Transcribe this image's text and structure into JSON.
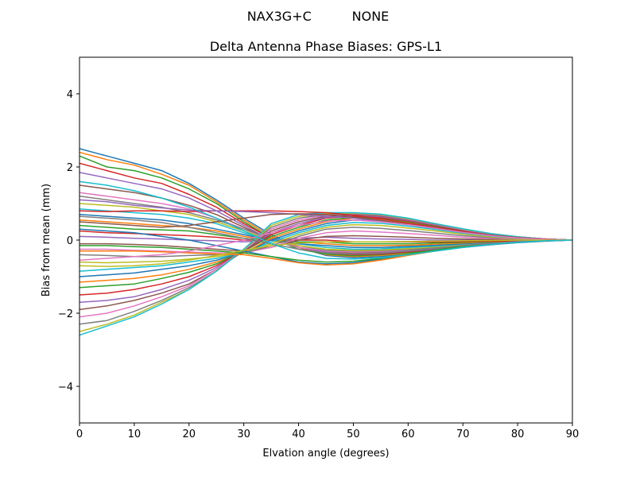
{
  "chart_data": {
    "type": "line",
    "suptitle": "NAX3G+C          NONE",
    "title": "Delta Antenna Phase Biases: GPS-L1",
    "xlabel": "Elvation angle (degrees)",
    "ylabel": "Bias from mean (mm)",
    "xlim": [
      0,
      90
    ],
    "ylim": [
      -5,
      5
    ],
    "x_ticks": [
      0,
      10,
      20,
      30,
      40,
      50,
      60,
      70,
      80,
      90
    ],
    "y_ticks": [
      -4,
      -2,
      0,
      2,
      4
    ],
    "y_tick_labels": [
      "−4",
      "−2",
      "0",
      "2",
      "4"
    ],
    "grid": false,
    "legend": "none",
    "x": [
      0,
      5,
      10,
      15,
      20,
      25,
      30,
      35,
      40,
      45,
      50,
      55,
      60,
      65,
      70,
      75,
      80,
      85,
      90
    ],
    "colors": [
      "#1f77b4",
      "#ff7f0e",
      "#2ca02c",
      "#d62728",
      "#9467bd",
      "#8c564b",
      "#e377c2",
      "#7f7f7f",
      "#bcbd22",
      "#17becf"
    ],
    "series": [
      {
        "values": [
          2.5,
          2.3,
          2.1,
          1.9,
          1.55,
          1.1,
          0.6,
          0.15,
          -0.2,
          -0.42,
          -0.48,
          -0.45,
          -0.38,
          -0.3,
          -0.2,
          -0.13,
          -0.07,
          -0.03,
          0
        ]
      },
      {
        "values": [
          2.4,
          2.2,
          2.05,
          1.8,
          1.5,
          1.05,
          0.55,
          0.1,
          -0.2,
          -0.4,
          -0.45,
          -0.42,
          -0.36,
          -0.28,
          -0.19,
          -0.12,
          -0.06,
          -0.02,
          0
        ]
      },
      {
        "values": [
          2.3,
          2.0,
          1.9,
          1.7,
          1.4,
          1.0,
          0.5,
          0.05,
          -0.25,
          -0.38,
          -0.43,
          -0.4,
          -0.34,
          -0.27,
          -0.18,
          -0.11,
          -0.06,
          -0.02,
          0
        ]
      },
      {
        "values": [
          2.1,
          1.9,
          1.7,
          1.55,
          1.25,
          0.9,
          0.45,
          0.05,
          -0.2,
          -0.35,
          -0.4,
          -0.38,
          -0.32,
          -0.25,
          -0.17,
          -0.1,
          -0.05,
          -0.02,
          0
        ]
      },
      {
        "values": [
          1.85,
          1.7,
          1.55,
          1.4,
          1.15,
          0.8,
          0.4,
          0.0,
          -0.2,
          -0.33,
          -0.38,
          -0.36,
          -0.3,
          -0.24,
          -0.16,
          -0.1,
          -0.05,
          -0.02,
          0
        ]
      },
      {
        "values": [
          1.5,
          1.4,
          1.3,
          1.15,
          0.95,
          0.7,
          0.35,
          0.0,
          -0.2,
          -0.3,
          -0.35,
          -0.33,
          -0.28,
          -0.22,
          -0.15,
          -0.09,
          -0.05,
          -0.02,
          0
        ]
      },
      {
        "values": [
          1.3,
          1.2,
          1.1,
          1.0,
          0.85,
          0.6,
          0.3,
          0.0,
          -0.2,
          -0.3,
          -0.33,
          -0.31,
          -0.27,
          -0.21,
          -0.14,
          -0.09,
          -0.04,
          -0.02,
          0
        ]
      },
      {
        "values": [
          1.2,
          1.1,
          1.0,
          0.9,
          0.75,
          0.55,
          0.3,
          0.05,
          -0.15,
          -0.28,
          -0.3,
          -0.29,
          -0.25,
          -0.2,
          -0.13,
          -0.08,
          -0.04,
          -0.01,
          0
        ]
      },
      {
        "values": [
          1.0,
          0.95,
          0.9,
          0.8,
          0.7,
          0.5,
          0.25,
          0.0,
          -0.15,
          -0.25,
          -0.28,
          -0.27,
          -0.23,
          -0.18,
          -0.12,
          -0.07,
          -0.04,
          -0.01,
          0
        ]
      },
      {
        "values": [
          0.85,
          0.8,
          0.75,
          0.7,
          0.6,
          0.45,
          0.2,
          0.0,
          -0.1,
          -0.2,
          -0.25,
          -0.24,
          -0.2,
          -0.16,
          -0.11,
          -0.07,
          -0.03,
          -0.01,
          0
        ]
      },
      {
        "values": [
          0.7,
          0.65,
          0.6,
          0.55,
          0.45,
          0.3,
          0.15,
          0.0,
          -0.1,
          -0.15,
          -0.2,
          -0.2,
          -0.17,
          -0.14,
          -0.1,
          -0.06,
          -0.03,
          -0.01,
          0
        ]
      },
      {
        "values": [
          0.55,
          0.5,
          0.45,
          0.4,
          0.35,
          0.25,
          0.1,
          0.0,
          -0.05,
          -0.1,
          -0.15,
          -0.15,
          -0.14,
          -0.11,
          -0.08,
          -0.05,
          -0.03,
          -0.01,
          0
        ]
      },
      {
        "values": [
          0.4,
          0.35,
          0.3,
          0.28,
          0.25,
          0.15,
          0.05,
          0.0,
          -0.05,
          -0.05,
          -0.1,
          -0.1,
          -0.1,
          -0.08,
          -0.06,
          -0.04,
          -0.02,
          -0.01,
          0
        ]
      },
      {
        "values": [
          0.25,
          0.2,
          0.18,
          0.15,
          0.12,
          0.08,
          0.0,
          0.0,
          0.0,
          0.0,
          -0.05,
          -0.05,
          -0.05,
          -0.05,
          -0.04,
          -0.03,
          -0.02,
          -0.01,
          0
        ]
      },
      {
        "values": [
          0.1,
          0.08,
          0.05,
          0.03,
          0.0,
          -0.02,
          -0.05,
          0.0,
          0.05,
          0.08,
          0.05,
          0.03,
          0.02,
          0.0,
          0.0,
          0.0,
          0.0,
          0.0,
          0
        ]
      },
      {
        "values": [
          -0.1,
          -0.1,
          -0.12,
          -0.15,
          -0.2,
          -0.25,
          -0.3,
          -0.2,
          0.0,
          0.1,
          0.12,
          0.1,
          0.08,
          0.05,
          0.03,
          0.02,
          0.01,
          0.0,
          0
        ]
      },
      {
        "values": [
          -0.25,
          -0.25,
          -0.28,
          -0.3,
          -0.33,
          -0.35,
          -0.35,
          -0.2,
          0.05,
          0.2,
          0.25,
          0.22,
          0.18,
          0.13,
          0.08,
          0.05,
          0.03,
          0.01,
          0
        ]
      },
      {
        "values": [
          -0.4,
          -0.42,
          -0.45,
          -0.45,
          -0.42,
          -0.4,
          -0.35,
          -0.15,
          0.1,
          0.3,
          0.35,
          0.32,
          0.26,
          0.19,
          0.12,
          0.07,
          0.04,
          0.01,
          0
        ]
      },
      {
        "values": [
          -0.6,
          -0.62,
          -0.6,
          -0.58,
          -0.52,
          -0.45,
          -0.35,
          -0.1,
          0.15,
          0.35,
          0.42,
          0.4,
          0.33,
          0.25,
          0.16,
          0.09,
          0.05,
          0.02,
          0
        ]
      },
      {
        "values": [
          -0.85,
          -0.8,
          -0.75,
          -0.7,
          -0.6,
          -0.5,
          -0.35,
          -0.05,
          0.2,
          0.4,
          0.48,
          0.46,
          0.38,
          0.29,
          0.19,
          0.11,
          0.06,
          0.02,
          0
        ]
      },
      {
        "values": [
          -1.0,
          -0.95,
          -0.9,
          -0.8,
          -0.7,
          -0.55,
          -0.35,
          0.0,
          0.25,
          0.45,
          0.55,
          0.52,
          0.43,
          0.33,
          0.22,
          0.13,
          0.07,
          0.02,
          0
        ]
      },
      {
        "values": [
          -1.15,
          -1.1,
          -1.05,
          -0.95,
          -0.8,
          -0.6,
          -0.35,
          0.05,
          0.3,
          0.5,
          0.6,
          0.57,
          0.47,
          0.36,
          0.24,
          0.14,
          0.07,
          0.03,
          0
        ]
      },
      {
        "values": [
          -1.3,
          -1.25,
          -1.2,
          -1.05,
          -0.88,
          -0.65,
          -0.3,
          0.1,
          0.35,
          0.55,
          0.62,
          0.6,
          0.5,
          0.38,
          0.26,
          0.15,
          0.08,
          0.03,
          0
        ]
      },
      {
        "values": [
          -1.5,
          -1.45,
          -1.35,
          -1.2,
          -1.0,
          -0.7,
          -0.3,
          0.15,
          0.4,
          0.6,
          0.65,
          0.62,
          0.52,
          0.4,
          0.27,
          0.16,
          0.08,
          0.03,
          0
        ]
      },
      {
        "values": [
          -1.7,
          -1.65,
          -1.55,
          -1.35,
          -1.1,
          -0.75,
          -0.3,
          0.2,
          0.45,
          0.62,
          0.68,
          0.64,
          0.54,
          0.41,
          0.28,
          0.16,
          0.08,
          0.03,
          0
        ]
      },
      {
        "values": [
          -1.9,
          -1.8,
          -1.65,
          -1.45,
          -1.2,
          -0.8,
          -0.3,
          0.25,
          0.5,
          0.65,
          0.7,
          0.66,
          0.56,
          0.42,
          0.29,
          0.17,
          0.09,
          0.03,
          0
        ]
      },
      {
        "values": [
          -2.1,
          -2.0,
          -1.8,
          -1.55,
          -1.25,
          -0.8,
          -0.25,
          0.3,
          0.55,
          0.68,
          0.72,
          0.68,
          0.57,
          0.43,
          0.29,
          0.17,
          0.09,
          0.03,
          0
        ]
      },
      {
        "values": [
          -2.3,
          -2.2,
          -1.95,
          -1.65,
          -1.3,
          -0.85,
          -0.25,
          0.35,
          0.6,
          0.7,
          0.73,
          0.69,
          0.58,
          0.44,
          0.3,
          0.18,
          0.09,
          0.03,
          0
        ]
      },
      {
        "values": [
          -2.5,
          -2.3,
          -2.05,
          -1.7,
          -1.35,
          -0.85,
          -0.25,
          0.4,
          0.65,
          0.72,
          0.74,
          0.7,
          0.59,
          0.45,
          0.3,
          0.18,
          0.09,
          0.03,
          0
        ]
      },
      {
        "values": [
          -2.6,
          -2.35,
          -2.1,
          -1.75,
          -1.35,
          -0.85,
          -0.25,
          0.45,
          0.7,
          0.75,
          0.75,
          0.71,
          0.6,
          0.45,
          0.31,
          0.18,
          0.09,
          0.03,
          0
        ]
      },
      {
        "values": [
          0.3,
          0.25,
          0.2,
          0.1,
          0.0,
          -0.15,
          -0.3,
          -0.45,
          -0.6,
          -0.65,
          -0.62,
          -0.52,
          -0.4,
          -0.28,
          -0.18,
          -0.1,
          -0.05,
          -0.02,
          0
        ]
      },
      {
        "values": [
          -0.3,
          -0.3,
          -0.3,
          -0.32,
          -0.35,
          -0.38,
          -0.4,
          -0.5,
          -0.62,
          -0.68,
          -0.65,
          -0.55,
          -0.42,
          -0.3,
          -0.19,
          -0.11,
          -0.05,
          -0.02,
          0
        ]
      },
      {
        "values": [
          -0.15,
          -0.15,
          -0.18,
          -0.2,
          -0.25,
          -0.3,
          -0.35,
          -0.45,
          -0.55,
          -0.6,
          -0.58,
          -0.5,
          -0.38,
          -0.27,
          -0.17,
          -0.1,
          -0.05,
          -0.02,
          0
        ]
      },
      {
        "values": [
          0.8,
          0.78,
          0.8,
          0.8,
          0.78,
          0.8,
          0.8,
          0.8,
          0.78,
          0.75,
          0.68,
          0.58,
          0.46,
          0.35,
          0.24,
          0.14,
          0.07,
          0.03,
          0
        ]
      },
      {
        "values": [
          1.1,
          1.05,
          0.95,
          0.88,
          0.82,
          0.8,
          0.78,
          0.75,
          0.7,
          0.65,
          0.6,
          0.52,
          0.42,
          0.32,
          0.22,
          0.13,
          0.07,
          0.02,
          0
        ]
      },
      {
        "values": [
          0.5,
          0.45,
          0.4,
          0.35,
          0.4,
          0.5,
          0.6,
          0.7,
          0.72,
          0.7,
          0.63,
          0.54,
          0.43,
          0.33,
          0.22,
          0.13,
          0.07,
          0.02,
          0
        ]
      },
      {
        "values": [
          -0.55,
          -0.5,
          -0.45,
          -0.4,
          -0.3,
          -0.15,
          0.0,
          0.2,
          0.4,
          0.52,
          0.55,
          0.5,
          0.42,
          0.32,
          0.21,
          0.12,
          0.06,
          0.02,
          0
        ]
      },
      {
        "values": [
          0.65,
          0.6,
          0.55,
          0.48,
          0.35,
          0.2,
          0.05,
          -0.1,
          -0.25,
          -0.35,
          -0.38,
          -0.35,
          -0.29,
          -0.22,
          -0.15,
          -0.09,
          -0.04,
          -0.02,
          0
        ]
      },
      {
        "values": [
          -0.7,
          -0.72,
          -0.7,
          -0.65,
          -0.55,
          -0.42,
          -0.28,
          -0.15,
          -0.08,
          -0.05,
          -0.05,
          -0.05,
          -0.04,
          -0.03,
          -0.02,
          -0.01,
          0.0,
          0.0,
          0
        ]
      },
      {
        "values": [
          1.6,
          1.5,
          1.35,
          1.15,
          0.9,
          0.6,
          0.25,
          -0.1,
          -0.35,
          -0.5,
          -0.52,
          -0.48,
          -0.4,
          -0.3,
          -0.2,
          -0.12,
          -0.06,
          -0.02,
          0
        ]
      }
    ]
  }
}
